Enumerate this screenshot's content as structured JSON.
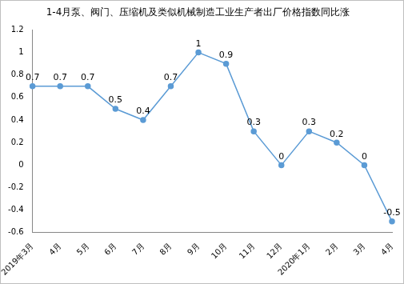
{
  "chart_data": {
    "type": "line",
    "title": "1-4月泵、阀门、压缩机及类似机械制造工业生产者出厂价格指数同比涨",
    "categories": [
      "2019年3月",
      "4月",
      "5月",
      "6月",
      "7月",
      "8月",
      "9月",
      "10月",
      "11月",
      "12月",
      "2020年1月",
      "2月",
      "3月",
      "4月"
    ],
    "values": [
      0.7,
      0.7,
      0.7,
      0.5,
      0.4,
      0.7,
      1,
      0.9,
      0.3,
      0,
      0.3,
      0.2,
      0,
      -0.5
    ],
    "color": "#5b9bd5",
    "marker": "circle",
    "line_style": "solid",
    "ylim": [
      -0.6,
      1.2
    ],
    "yticks": [
      -0.6,
      -0.4,
      -0.2,
      0,
      0.2,
      0.4,
      0.6,
      0.8,
      1,
      1.2
    ],
    "grid": false,
    "data_labels": true
  }
}
